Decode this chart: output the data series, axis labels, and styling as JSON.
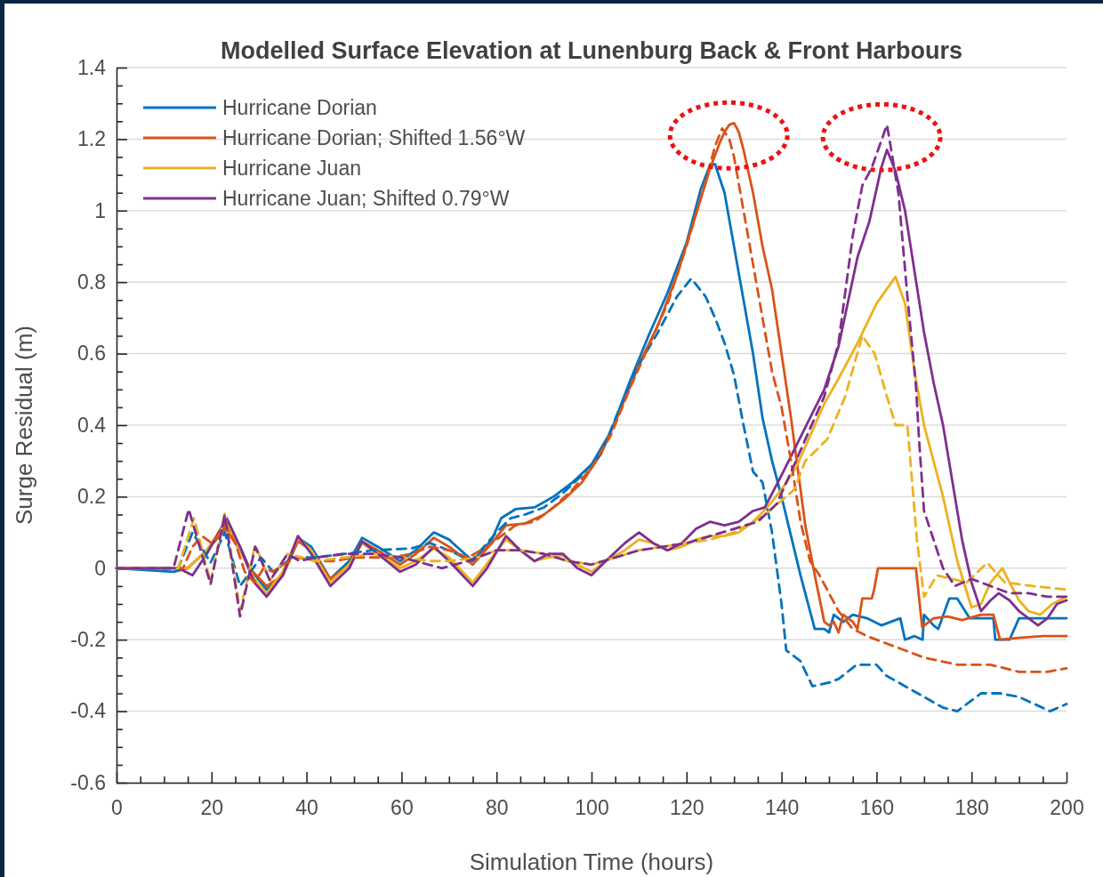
{
  "chart_data": {
    "type": "line",
    "title": "Modelled Surface Elevation at Lunenburg Back & Front Harbours",
    "xlabel": "Simulation Time (hours)",
    "ylabel": "Surge Residual (m)",
    "xlim": [
      0,
      200
    ],
    "ylim": [
      -0.6,
      1.4
    ],
    "xticks": [
      0,
      {
        "value": 5,
        "label": null
      },
      {
        "value": 10,
        "label": null
      },
      {
        "value": 15,
        "label": null
      },
      20,
      {
        "value": 25,
        "label": null
      },
      {
        "value": 30,
        "label": null
      },
      {
        "value": 35,
        "label": null
      },
      40,
      {
        "value": 45,
        "label": null
      },
      {
        "value": 50,
        "label": null
      },
      {
        "value": 55,
        "label": null
      },
      60,
      {
        "value": 65,
        "label": null
      },
      {
        "value": 70,
        "label": null
      },
      {
        "value": 75,
        "label": null
      },
      80,
      {
        "value": 85,
        "label": null
      },
      {
        "value": 90,
        "label": null
      },
      {
        "value": 95,
        "label": null
      },
      100,
      {
        "value": 105,
        "label": null
      },
      {
        "value": 110,
        "label": null
      },
      {
        "value": 115,
        "label": null
      },
      120,
      {
        "value": 125,
        "label": null
      },
      {
        "value": 130,
        "label": null
      },
      {
        "value": 135,
        "label": null
      },
      140,
      {
        "value": 145,
        "label": null
      },
      {
        "value": 150,
        "label": null
      },
      {
        "value": 155,
        "label": null
      },
      160,
      {
        "value": 165,
        "label": null
      },
      {
        "value": 170,
        "label": null
      },
      {
        "value": 175,
        "label": null
      },
      180,
      {
        "value": 185,
        "label": null
      },
      {
        "value": 190,
        "label": null
      },
      {
        "value": 195,
        "label": null
      },
      200
    ],
    "yticks": [
      -0.6,
      {
        "value": -0.55,
        "label": null
      },
      {
        "value": -0.5,
        "label": null
      },
      {
        "value": -0.45,
        "label": null
      },
      -0.4,
      {
        "value": -0.35,
        "label": null
      },
      {
        "value": -0.3,
        "label": null
      },
      {
        "value": -0.25,
        "label": null
      },
      -0.2,
      {
        "value": -0.15,
        "label": null
      },
      {
        "value": -0.1,
        "label": null
      },
      {
        "value": -0.05,
        "label": null
      },
      0,
      {
        "value": 0.05,
        "label": null
      },
      {
        "value": 0.1,
        "label": null
      },
      {
        "value": 0.15,
        "label": null
      },
      0.2,
      {
        "value": 0.25,
        "label": null
      },
      {
        "value": 0.3,
        "label": null
      },
      {
        "value": 0.35,
        "label": null
      },
      0.4,
      {
        "value": 0.45,
        "label": null
      },
      {
        "value": 0.5,
        "label": null
      },
      {
        "value": 0.55,
        "label": null
      },
      0.6,
      {
        "value": 0.65,
        "label": null
      },
      {
        "value": 0.7,
        "label": null
      },
      {
        "value": 0.75,
        "label": null
      },
      0.8,
      {
        "value": 0.85,
        "label": null
      },
      {
        "value": 0.9,
        "label": null
      },
      {
        "value": 0.95,
        "label": null
      },
      1,
      {
        "value": 1.05,
        "label": null
      },
      {
        "value": 1.1,
        "label": null
      },
      {
        "value": 1.15,
        "label": null
      },
      1.2,
      {
        "value": 1.25,
        "label": null
      },
      {
        "value": 1.3,
        "label": null
      },
      {
        "value": 1.35,
        "label": null
      },
      1.4
    ],
    "grid": "y",
    "legend": "top left",
    "marker": "none",
    "series": [
      {
        "name": "Hurricane Dorian",
        "color": "#0072bd",
        "line_style": "solid",
        "x": [
          0,
          12,
          15,
          19,
          23,
          26,
          28,
          31.6,
          35,
          38.2,
          41,
          45,
          49,
          51.7,
          55,
          59.7,
          63,
          66.8,
          70,
          75,
          79,
          81,
          84,
          88,
          92,
          96,
          100,
          104,
          108,
          112,
          116,
          120,
          123,
          125,
          126,
          128,
          130,
          132,
          134,
          136,
          138,
          140,
          142,
          144,
          146,
          147,
          149,
          150,
          151,
          153,
          155,
          158,
          161,
          163,
          165,
          166,
          168,
          169.7,
          170,
          172,
          173,
          175.3,
          177,
          179.6,
          182,
          184.6,
          185,
          188,
          190,
          195,
          200
        ],
        "values": [
          0,
          -0.01,
          0,
          0.05,
          0.12,
          0.06,
          0,
          -0.06,
          -0.02,
          0.085,
          0.06,
          -0.03,
          0.02,
          0.085,
          0.06,
          0.02,
          0.05,
          0.1,
          0.08,
          0.02,
          0.08,
          0.14,
          0.165,
          0.17,
          0.2,
          0.24,
          0.29,
          0.38,
          0.52,
          0.65,
          0.77,
          0.91,
          1.06,
          1.13,
          1.13,
          1.05,
          0.9,
          0.75,
          0.6,
          0.42,
          0.3,
          0.2,
          0.09,
          -0.02,
          -0.12,
          -0.17,
          -0.17,
          -0.18,
          -0.13,
          -0.15,
          -0.13,
          -0.14,
          -0.16,
          -0.15,
          -0.14,
          -0.2,
          -0.19,
          -0.2,
          -0.13,
          -0.16,
          -0.17,
          -0.085,
          -0.085,
          -0.14,
          -0.14,
          -0.14,
          -0.2,
          -0.2,
          -0.14,
          -0.14,
          -0.14
        ]
      },
      {
        "name": "Hurricane Dorian; Shifted 1.56°W",
        "color": "#d95319",
        "line_style": "solid",
        "x": [
          0,
          15,
          19,
          23,
          26,
          28,
          31.6,
          35,
          38.2,
          41,
          45,
          49,
          51.7,
          55,
          59.7,
          63,
          66.8,
          70,
          75,
          79,
          82,
          86,
          90,
          94,
          98,
          102,
          106,
          110,
          114,
          118,
          122,
          125,
          127,
          128,
          129,
          130,
          131,
          132,
          134,
          136,
          138,
          140,
          142,
          144,
          145,
          147,
          149,
          150,
          151,
          152,
          153,
          155,
          156,
          157,
          159,
          159.5,
          160.3,
          168.3,
          169.6,
          172,
          175,
          178,
          182,
          184.6,
          186,
          190,
          195,
          200
        ],
        "values": [
          0,
          0,
          0.05,
          0.11,
          0.05,
          0,
          -0.05,
          -0.02,
          0.075,
          0.05,
          -0.03,
          0.01,
          0.075,
          0.05,
          0.01,
          0.04,
          0.085,
          0.06,
          0.01,
          0.07,
          0.12,
          0.125,
          0.15,
          0.19,
          0.24,
          0.32,
          0.44,
          0.57,
          0.68,
          0.82,
          0.99,
          1.12,
          1.19,
          1.22,
          1.24,
          1.245,
          1.22,
          1.17,
          1.05,
          0.9,
          0.78,
          0.6,
          0.42,
          0.22,
          0.12,
          -0.02,
          -0.15,
          -0.16,
          -0.15,
          -0.18,
          -0.13,
          -0.15,
          -0.17,
          -0.085,
          -0.085,
          -0.06,
          0,
          0,
          -0.165,
          -0.14,
          -0.135,
          -0.145,
          -0.13,
          -0.13,
          -0.2,
          -0.195,
          -0.19,
          -0.19
        ]
      },
      {
        "name": "Hurricane Juan",
        "color": "#edb120",
        "line_style": "solid",
        "x": [
          0,
          15,
          19,
          23,
          26,
          29,
          31.6,
          35,
          38.2,
          41,
          45,
          49,
          51.7,
          55,
          59.7,
          63,
          66.8,
          70,
          75,
          79,
          82,
          85,
          88,
          91,
          94,
          97,
          100,
          103,
          107,
          110,
          113,
          116,
          119,
          122,
          125,
          128,
          131,
          134,
          137,
          140,
          143,
          146,
          149,
          152,
          156,
          160,
          164,
          166,
          168,
          170,
          172,
          174,
          177,
          180,
          182,
          184,
          186.5,
          188,
          190,
          192,
          194.5,
          197,
          200
        ],
        "values": [
          0,
          0,
          0.05,
          0.13,
          0.05,
          -0.03,
          -0.07,
          -0.01,
          0.085,
          0.05,
          -0.04,
          0.01,
          0.07,
          0.04,
          0,
          0.02,
          0.055,
          0.03,
          -0.04,
          0.03,
          0.08,
          0.05,
          0.02,
          0.03,
          0.035,
          0.01,
          -0.01,
          0.02,
          0.05,
          0.08,
          0.07,
          0.05,
          0.06,
          0.08,
          0.09,
          0.09,
          0.1,
          0.13,
          0.17,
          0.22,
          0.28,
          0.37,
          0.46,
          0.53,
          0.63,
          0.74,
          0.815,
          0.74,
          0.55,
          0.4,
          0.3,
          0.2,
          0.02,
          -0.11,
          -0.1,
          -0.04,
          0,
          -0.04,
          -0.09,
          -0.12,
          -0.13,
          -0.1,
          -0.08
        ]
      },
      {
        "name": "Hurricane Juan; Shifted 0.79°W",
        "color": "#7e2f8e",
        "line_style": "solid",
        "x": [
          0,
          13,
          16,
          19,
          23.2,
          26,
          29,
          31.6,
          35,
          38.2,
          41,
          45,
          49,
          51.7,
          55,
          59.7,
          63,
          66.8,
          70,
          75,
          78,
          82,
          85,
          88,
          91,
          94,
          97,
          100,
          103,
          107,
          110,
          113,
          116,
          119,
          122,
          125,
          128,
          131,
          134,
          136.5,
          140,
          143,
          146,
          149,
          152,
          156,
          158.5,
          161,
          162.2,
          164,
          166,
          168,
          170,
          172,
          174,
          176,
          178,
          180,
          182,
          184,
          185.7,
          188,
          190,
          194,
          196,
          198,
          200
        ],
        "values": [
          0,
          0,
          -0.02,
          0.04,
          0.14,
          0.06,
          -0.04,
          -0.08,
          -0.02,
          0.09,
          0.04,
          -0.05,
          0,
          0.075,
          0.04,
          -0.01,
          0.01,
          0.06,
          0.02,
          -0.05,
          0,
          0.09,
          0.05,
          0.02,
          0.04,
          0.04,
          0,
          -0.02,
          0.02,
          0.07,
          0.1,
          0.07,
          0.05,
          0.07,
          0.11,
          0.13,
          0.12,
          0.13,
          0.16,
          0.17,
          0.26,
          0.34,
          0.42,
          0.5,
          0.62,
          0.87,
          0.97,
          1.12,
          1.17,
          1.11,
          1.0,
          0.83,
          0.66,
          0.52,
          0.4,
          0.24,
          0.08,
          -0.04,
          -0.12,
          -0.09,
          -0.07,
          -0.09,
          -0.12,
          -0.16,
          -0.14,
          -0.1,
          -0.09
        ]
      },
      {
        "color": "#0072bd",
        "line_style": "dashed",
        "x": [
          0,
          13,
          16,
          19.8,
          22.8,
          26,
          30.4,
          33,
          37,
          42,
          48,
          54,
          62,
          66,
          70,
          74.7,
          80,
          83,
          86,
          90,
          94,
          98,
          102,
          106,
          110,
          114,
          118,
          121,
          124,
          126,
          128,
          130,
          132,
          134,
          136,
          138,
          139,
          140,
          141,
          144,
          146.5,
          150,
          152,
          155.8,
          160,
          162,
          166,
          170,
          174,
          177,
          182,
          186,
          190,
          196.5,
          200
        ],
        "values": [
          0,
          0,
          0.1,
          0.015,
          0.1,
          -0.05,
          0.03,
          -0.01,
          0.03,
          0.03,
          0.04,
          0.05,
          0.055,
          0.07,
          0.05,
          0.02,
          0.1,
          0.14,
          0.15,
          0.17,
          0.21,
          0.26,
          0.32,
          0.45,
          0.57,
          0.66,
          0.76,
          0.81,
          0.76,
          0.7,
          0.63,
          0.54,
          0.4,
          0.27,
          0.24,
          0.1,
          0,
          -0.1,
          -0.23,
          -0.26,
          -0.33,
          -0.32,
          -0.31,
          -0.27,
          -0.27,
          -0.3,
          -0.33,
          -0.36,
          -0.39,
          -0.4,
          -0.35,
          -0.35,
          -0.36,
          -0.4,
          -0.38
        ]
      },
      {
        "color": "#d95319",
        "line_style": "dashed",
        "x": [
          0,
          14,
          16,
          18,
          20,
          23,
          25,
          27,
          29,
          31,
          33,
          35,
          38,
          42,
          46,
          50,
          54,
          58,
          62,
          66,
          70,
          74,
          78,
          80,
          84,
          88,
          92,
          96,
          100,
          104,
          108,
          112,
          116,
          120,
          124,
          126,
          127.5,
          129,
          130,
          132,
          134,
          136,
          138,
          140,
          142,
          144,
          146,
          148,
          150,
          152,
          155,
          158,
          162,
          166,
          170,
          177,
          184,
          190,
          196,
          200
        ],
        "values": [
          0,
          0,
          0.06,
          0.09,
          0.07,
          0.12,
          0.07,
          -0.01,
          -0.04,
          0,
          -0.01,
          0.01,
          0.03,
          0.02,
          0.02,
          0.03,
          0.03,
          0.03,
          0.04,
          0.06,
          0.05,
          0.03,
          0.06,
          0.08,
          0.12,
          0.13,
          0.17,
          0.22,
          0.28,
          0.37,
          0.5,
          0.62,
          0.74,
          0.9,
          1.08,
          1.18,
          1.23,
          1.2,
          1.15,
          1.0,
          0.85,
          0.7,
          0.55,
          0.45,
          0.3,
          0.13,
          0.02,
          -0.02,
          -0.07,
          -0.12,
          -0.17,
          -0.19,
          -0.21,
          -0.23,
          -0.25,
          -0.27,
          -0.27,
          -0.29,
          -0.29,
          -0.28
        ]
      },
      {
        "color": "#edb120",
        "line_style": "dashed",
        "x": [
          0,
          13,
          16.3,
          19.8,
          22.8,
          26,
          29.2,
          32.3,
          36,
          42,
          48,
          54,
          60,
          66,
          70,
          76,
          80,
          85,
          90,
          95,
          100,
          105,
          110,
          115,
          120,
          125,
          130,
          136.5,
          142.7,
          145,
          149.6,
          153.4,
          157,
          159.6,
          162.2,
          164,
          166.5,
          168.5,
          170,
          172.7,
          176,
          179,
          183.3,
          187,
          193,
          200
        ],
        "values": [
          0,
          0,
          0.14,
          -0.04,
          0.155,
          -0.12,
          0.065,
          -0.035,
          0.04,
          0.02,
          0.03,
          0.04,
          0.03,
          0.02,
          0.02,
          0.03,
          0.05,
          0.05,
          0.04,
          0.02,
          0.01,
          0.03,
          0.05,
          0.06,
          0.07,
          0.08,
          0.1,
          0.15,
          0.22,
          0.3,
          0.36,
          0.48,
          0.65,
          0.6,
          0.48,
          0.4,
          0.4,
          0.08,
          -0.08,
          -0.02,
          -0.03,
          -0.04,
          0.015,
          -0.04,
          -0.05,
          -0.06
        ]
      },
      {
        "color": "#7e2f8e",
        "line_style": "dashed",
        "x": [
          0,
          12,
          15.2,
          19.8,
          22.8,
          26,
          29.2,
          32.3,
          36,
          38.5,
          42,
          48,
          54,
          60,
          68.5,
          74,
          80,
          85,
          90,
          95,
          100,
          105,
          110,
          115,
          120,
          125,
          130,
          135,
          139,
          142.7,
          145,
          149,
          152,
          155,
          157,
          159,
          162.2,
          164.6,
          166.5,
          168.3,
          169,
          170,
          174,
          176.5,
          180,
          184,
          188,
          192,
          196,
          199,
          200
        ],
        "values": [
          0,
          0,
          0.165,
          -0.045,
          0.15,
          -0.135,
          0.06,
          -0.035,
          0.04,
          0.02,
          0.03,
          0.04,
          0.04,
          0.03,
          0,
          0.02,
          0.05,
          0.05,
          0.04,
          0.02,
          0.01,
          0.03,
          0.05,
          0.06,
          0.07,
          0.09,
          0.11,
          0.13,
          0.18,
          0.29,
          0.36,
          0.48,
          0.63,
          0.93,
          1.07,
          1.12,
          1.24,
          1.05,
          0.76,
          0.51,
          0.35,
          0.16,
          0,
          -0.05,
          -0.03,
          -0.05,
          -0.07,
          -0.07,
          -0.08,
          -0.08,
          -0.08
        ]
      }
    ]
  }
}
